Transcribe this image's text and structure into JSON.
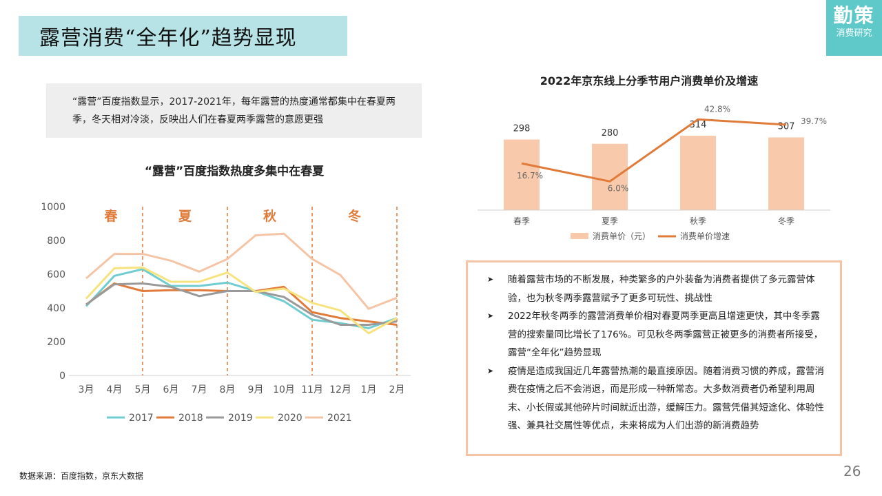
{
  "page": {
    "title": "露营消费“全年化”趋势显现",
    "logo_main": "勤策",
    "logo_sub": "消费研究",
    "note": "“露营”百度指数显示，2017-2021年，每年露营的热度通常都集中在春夏两季，冬天相对冷淡，反映出人们在春夏两季露营的意愿更强",
    "source": "数据来源：百度指数，京东大数据",
    "page_number": "26",
    "bullets": [
      "随着露营市场的不断发展，种类繁多的户外装备为消费者提供了多元露营体验，也为秋冬两季露营赋予了更多可玩性、挑战性",
      "2022年秋冬两季的露营消费单价相对春夏两季更高且增速更快，其中冬季露营的搜索量同比增长了176%。可见秋冬两季露营正被更多的消费者所接受，露营“全年化”趋势显现",
      "疫情是造成我国近几年露营热潮的最直接原因。随着消费习惯的养成，露营消费在疫情之后不会消退，而是形成一种新常态。大多数消费者仍希望利用周末、小长假或其他碎片时间就近出游，缓解压力。露营凭借其短途化、体验性强、兼具社交属性等优点，未来将成为人们出游的新消费趋势"
    ],
    "colors": {
      "title_bg": "#b8e3e6",
      "logo_bg": "#5fc9c9",
      "accent_orange": "#e07b39",
      "bar_peach": "#f8c9aa",
      "info_border": "#f5c4a5"
    }
  },
  "chart_data": [
    {
      "type": "line",
      "title": "“露营”百度指数热度多集中在春夏",
      "categories": [
        "3月",
        "4月",
        "5月",
        "6月",
        "7月",
        "8月",
        "9月",
        "10月",
        "11月",
        "12月",
        "1月",
        "2月"
      ],
      "ylim": [
        0,
        1000
      ],
      "yticks": [
        0,
        200,
        400,
        600,
        800,
        1000
      ],
      "grid": false,
      "legend": "bottom",
      "season_labels": [
        "春",
        "夏",
        "秋",
        "冬"
      ],
      "season_dividers_after": [
        "5月",
        "8月",
        "11月",
        "2月"
      ],
      "series": [
        {
          "name": "2017",
          "color": "#6fcdd0",
          "values": [
            410,
            590,
            630,
            530,
            530,
            550,
            500,
            440,
            330,
            310,
            280,
            340
          ]
        },
        {
          "name": "2018",
          "color": "#e07b39",
          "values": [
            420,
            545,
            500,
            505,
            505,
            500,
            500,
            525,
            375,
            340,
            320,
            300
          ]
        },
        {
          "name": "2019",
          "color": "#9a9a9a",
          "values": [
            420,
            540,
            545,
            525,
            470,
            500,
            500,
            465,
            360,
            300,
            300,
            320
          ]
        },
        {
          "name": "2020",
          "color": "#f7e37d",
          "values": [
            455,
            635,
            640,
            555,
            555,
            610,
            495,
            515,
            430,
            385,
            250,
            340
          ]
        },
        {
          "name": "2021",
          "color": "#f5c4a5",
          "values": [
            575,
            720,
            720,
            680,
            615,
            690,
            830,
            840,
            690,
            595,
            395,
            460
          ]
        }
      ]
    },
    {
      "type": "bar",
      "title": "2022年京东线上分季节用户消费单价及增速",
      "categories": [
        "春季",
        "夏季",
        "秋季",
        "冬季"
      ],
      "legend": "bottom",
      "series": [
        {
          "name": "消费单价（元）",
          "type": "bar",
          "color": "#f8c9aa",
          "values": [
            298,
            280,
            314,
            307
          ],
          "labels": [
            "298",
            "280",
            "314",
            "307"
          ]
        },
        {
          "name": "消费单价增速",
          "type": "line",
          "color": "#e07b39",
          "values": [
            16.7,
            6.0,
            42.8,
            39.7
          ],
          "labels": [
            "16.7%",
            "6.0%",
            "42.8%",
            "39.7%"
          ]
        }
      ]
    }
  ]
}
